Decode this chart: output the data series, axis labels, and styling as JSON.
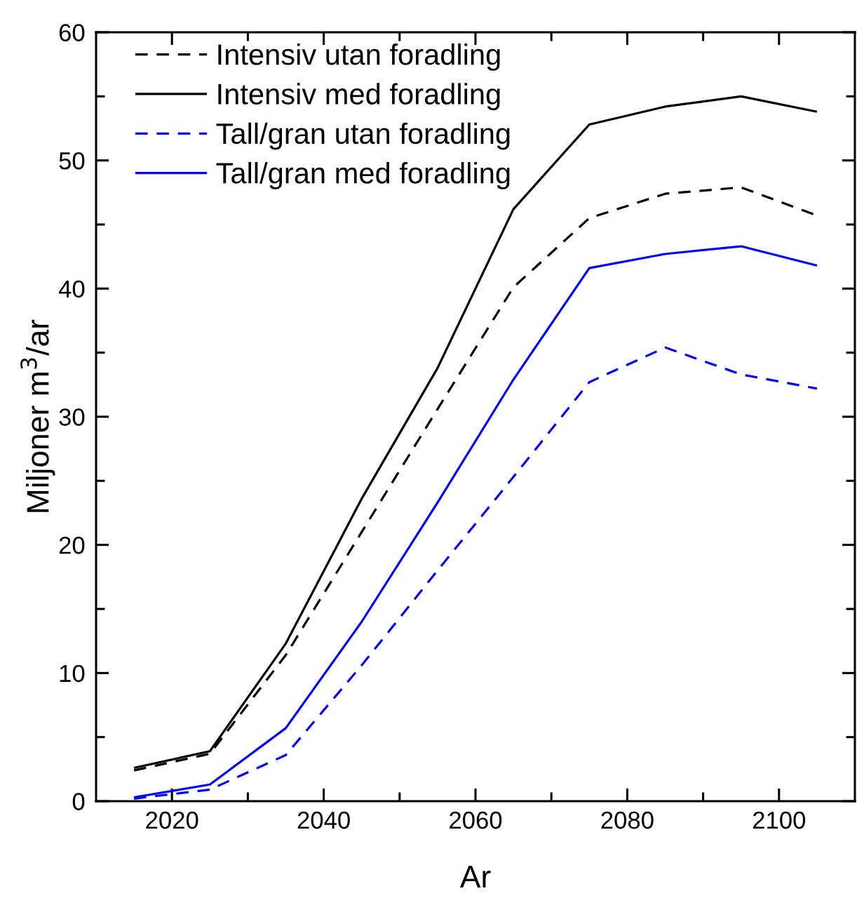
{
  "chart_data": {
    "type": "line",
    "xlabel": "Ar",
    "ylabel": "Miljoner m$^{3}$/ar",
    "x": [
      2015,
      2025,
      2035,
      2045,
      2055,
      2065,
      2075,
      2085,
      2095,
      2105
    ],
    "series": [
      {
        "name": "Intensiv utan foradling",
        "color": "#000000",
        "line_style": "dashed",
        "values": [
          2.4,
          3.7,
          11.4,
          21.0,
          30.6,
          40.1,
          45.5,
          47.4,
          47.9,
          45.7
        ]
      },
      {
        "name": "Intensiv med foradling",
        "color": "#000000",
        "line_style": "solid",
        "values": [
          2.6,
          3.9,
          12.3,
          23.6,
          33.8,
          46.2,
          52.8,
          54.2,
          55.0,
          53.8
        ]
      },
      {
        "name": "Tall/gran utan foradling",
        "color": "#0000ff",
        "line_style": "dashed",
        "values": [
          0.2,
          0.9,
          3.6,
          10.6,
          18.0,
          25.3,
          32.7,
          35.4,
          33.3,
          32.2
        ]
      },
      {
        "name": "Tall/gran med foradling",
        "color": "#0000ff",
        "line_style": "solid",
        "values": [
          0.3,
          1.3,
          5.7,
          14.0,
          23.3,
          32.9,
          41.6,
          42.7,
          43.3,
          41.8
        ]
      }
    ],
    "xlim": [
      2010,
      2110
    ],
    "xticks": [
      2020,
      {
        "value": 2030,
        "label": null
      },
      2040,
      {
        "value": 2050,
        "label": null
      },
      2060,
      {
        "value": 2070,
        "label": null
      },
      2080,
      {
        "value": 2090,
        "label": null
      },
      2100
    ],
    "ylim": [
      0,
      60
    ],
    "yticks": [
      0,
      {
        "value": 5,
        "label": null
      },
      10,
      {
        "value": 15,
        "label": null
      },
      20,
      {
        "value": 25,
        "label": null
      },
      30,
      {
        "value": 35,
        "label": null
      },
      40,
      {
        "value": 45,
        "label": null
      },
      50,
      {
        "value": 55,
        "label": null
      },
      60
    ],
    "grid": false,
    "legend": "top left",
    "marker": "none"
  }
}
